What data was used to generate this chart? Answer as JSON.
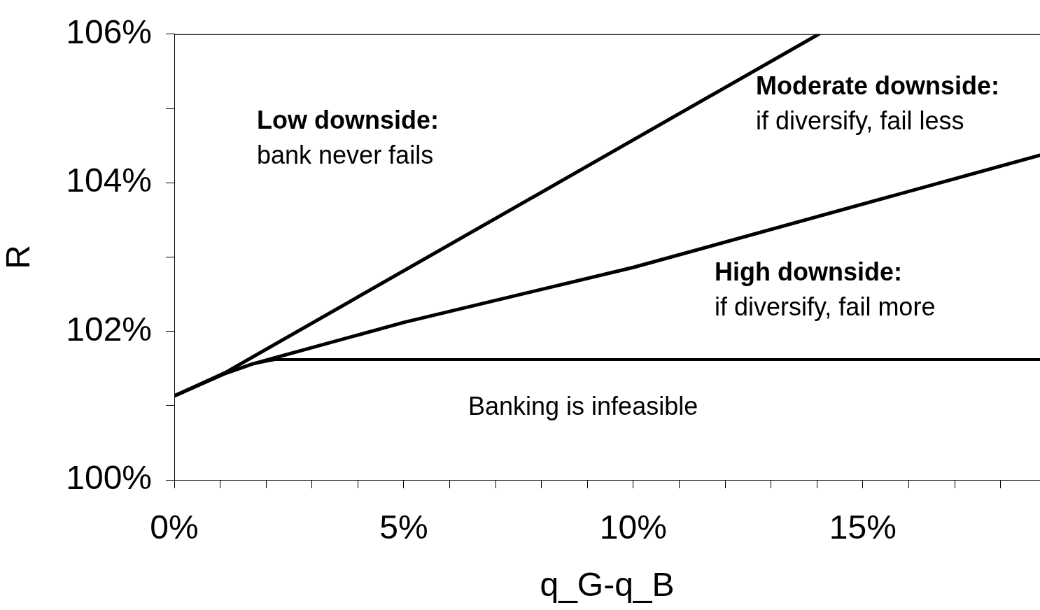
{
  "chart_data": {
    "type": "line",
    "xlabel": "q_G-q_B",
    "ylabel": "R",
    "xlim": [
      0,
      18.86
    ],
    "ylim": [
      100,
      106
    ],
    "xticks": [
      {
        "value": 0,
        "label": "0%"
      },
      {
        "value": 1,
        "label": null
      },
      {
        "value": 2,
        "label": null
      },
      {
        "value": 3,
        "label": null
      },
      {
        "value": 4,
        "label": null
      },
      {
        "value": 5,
        "label": "5%"
      },
      {
        "value": 6,
        "label": null
      },
      {
        "value": 7,
        "label": null
      },
      {
        "value": 8,
        "label": null
      },
      {
        "value": 9,
        "label": null
      },
      {
        "value": 10,
        "label": "10%"
      },
      {
        "value": 11,
        "label": null
      },
      {
        "value": 12,
        "label": null
      },
      {
        "value": 13,
        "label": null
      },
      {
        "value": 14,
        "label": null
      },
      {
        "value": 15,
        "label": "15%"
      },
      {
        "value": 16,
        "label": null
      },
      {
        "value": 17,
        "label": null
      },
      {
        "value": 18,
        "label": null
      }
    ],
    "yticks": [
      {
        "value": 100,
        "label": "100%"
      },
      {
        "value": 101,
        "label": null
      },
      {
        "value": 102,
        "label": "102%"
      },
      {
        "value": 103,
        "label": null
      },
      {
        "value": 104,
        "label": "104%"
      },
      {
        "value": 105,
        "label": null
      },
      {
        "value": 106,
        "label": "106%"
      }
    ],
    "series": [
      {
        "color": "#000000",
        "x": [
          0,
          1.1,
          14.04
        ],
        "values": [
          101.13,
          101.44,
          106
        ]
      },
      {
        "color": "#000000",
        "x": [
          0,
          1.1,
          1.7,
          5,
          10,
          18.86
        ],
        "values": [
          101.13,
          101.43,
          101.56,
          102.12,
          102.86,
          104.37
        ]
      },
      {
        "color": "#000000",
        "x": [
          1.7,
          2.2,
          18.86
        ],
        "values": [
          101.56,
          101.62,
          101.62
        ]
      }
    ],
    "grid": false,
    "legend": false,
    "marker": "none",
    "line_style": "solid",
    "annotations": [
      "Low downside:",
      "bank never fails",
      "Moderate downside:",
      "if diversify, fail less",
      "High downside:",
      "if diversify, fail more",
      "Banking is infeasible"
    ]
  }
}
